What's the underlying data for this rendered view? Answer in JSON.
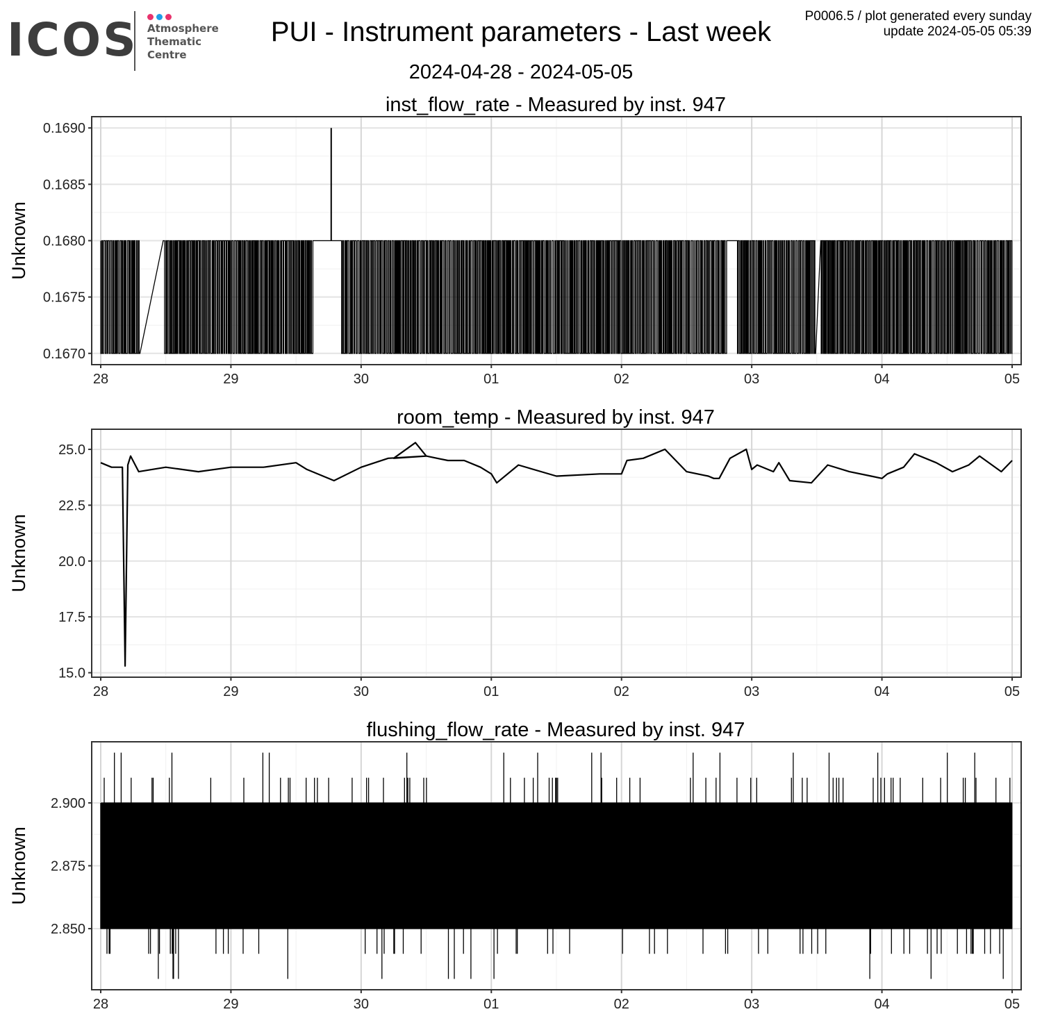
{
  "header": {
    "logo": {
      "wordmark": "ICOS",
      "subtitle_lines": [
        "Atmosphere",
        "Thematic",
        "Centre"
      ],
      "dot_colors": [
        "#e8336d",
        "#1f9fe8",
        "#e8336d"
      ]
    },
    "title": "PUI - Instrument parameters - Last week",
    "date_range": "2024-04-28 - 2024-05-05",
    "meta_line1": "P0006.5 / plot generated every sunday",
    "meta_line2": "update  2024-05-05 05:39"
  },
  "chart_data": [
    {
      "type": "line",
      "title": "inst_flow_rate - Measured by inst. 947",
      "ylabel": "Unknown",
      "xlabel": "",
      "xlim": [
        "2024-04-28T00:00",
        "2024-05-05T00:00"
      ],
      "xticks": [
        "28",
        "29",
        "30",
        "01",
        "02",
        "03",
        "04",
        "05"
      ],
      "ylim": [
        0.1669,
        0.1691
      ],
      "yticks": [
        "0.1670",
        "0.1675",
        "0.1680",
        "0.1685",
        "0.1690"
      ],
      "grid": true,
      "line_color": "#000000",
      "pattern": "rapid alternation between two levels",
      "levels": [
        0.167,
        0.168
      ],
      "steady_intervals": [
        {
          "from": "2024-04-28T07:12",
          "to": "2024-04-28T11:31",
          "value": 0.168
        },
        {
          "from": "2024-04-29T15:07",
          "to": "2024-04-29T20:24",
          "value": 0.168
        },
        {
          "from": "2024-05-02T19:26",
          "to": "2024-05-02T21:22",
          "value": 0.168
        },
        {
          "from": "2024-05-03T11:46",
          "to": "2024-05-03T12:43",
          "value": 0.168
        }
      ],
      "spikes": [
        {
          "x": "2024-04-29T18:29",
          "y": 0.169
        }
      ]
    },
    {
      "type": "line",
      "title": "room_temp - Measured by inst. 947",
      "ylabel": "Unknown",
      "xlabel": "",
      "xlim": [
        "2024-04-28T00:00",
        "2024-05-05T00:00"
      ],
      "xticks": [
        "28",
        "29",
        "30",
        "01",
        "02",
        "03",
        "04",
        "05"
      ],
      "ylim": [
        14.8,
        25.9
      ],
      "yticks": [
        "15.0",
        "17.5",
        "20.0",
        "22.5",
        "25.0"
      ],
      "grid": true,
      "line_color": "#000000",
      "series": [
        {
          "x": [
            "2024-04-28T00:00",
            "2024-04-28T02:00",
            "2024-04-28T04:00",
            "2024-04-28T04:30",
            "2024-04-28T05:00",
            "2024-04-28T05:30",
            "2024-04-28T07:00",
            "2024-04-28T12:00",
            "2024-04-28T18:00",
            "2024-04-29T00:00",
            "2024-04-29T06:00",
            "2024-04-29T12:00",
            "2024-04-29T14:00",
            "2024-04-29T19:00",
            "2024-04-30T00:00",
            "2024-04-30T05:00",
            "2024-04-30T12:00",
            "2024-04-30T06:00",
            "2024-04-30T10:00",
            "2024-04-30T12:00",
            "2024-04-30T16:00",
            "2024-04-30T19:00",
            "2024-04-30T22:00",
            "2024-05-01T00:00",
            "2024-05-01T01:00",
            "2024-05-01T05:00",
            "2024-05-01T12:00",
            "2024-05-01T20:00",
            "2024-05-01T23:00",
            "2024-05-02T00:00",
            "2024-05-02T01:00",
            "2024-05-02T04:00",
            "2024-05-02T08:00",
            "2024-05-02T12:00",
            "2024-05-02T16:00",
            "2024-05-02T17:00",
            "2024-05-02T18:00",
            "2024-05-02T20:00",
            "2024-05-02T23:00",
            "2024-05-03T00:00",
            "2024-05-03T01:00",
            "2024-05-03T04:00",
            "2024-05-03T05:00",
            "2024-05-03T06:00",
            "2024-05-03T07:00",
            "2024-05-03T11:00",
            "2024-05-03T14:00",
            "2024-05-03T18:00",
            "2024-05-03T22:00",
            "2024-05-04T00:00",
            "2024-05-04T01:00",
            "2024-05-04T04:00",
            "2024-05-04T06:00",
            "2024-05-04T10:00",
            "2024-05-04T13:00",
            "2024-05-04T16:00",
            "2024-05-04T18:00",
            "2024-05-04T22:00",
            "2024-05-05T00:00"
          ],
          "y": [
            24.4,
            24.2,
            24.2,
            15.3,
            24.3,
            24.7,
            24.0,
            24.2,
            24.0,
            24.2,
            24.2,
            24.4,
            24.1,
            23.6,
            24.2,
            24.6,
            24.7,
            24.6,
            25.3,
            24.7,
            24.5,
            24.5,
            24.2,
            23.9,
            23.5,
            24.3,
            23.8,
            23.9,
            23.9,
            23.9,
            24.5,
            24.6,
            25.0,
            24.0,
            23.8,
            23.7,
            23.7,
            24.6,
            25.0,
            24.1,
            24.3,
            24.0,
            24.4,
            24.0,
            23.6,
            23.5,
            24.3,
            24.0,
            23.8,
            23.7,
            23.9,
            24.2,
            24.8,
            24.4,
            24.0,
            24.3,
            24.7,
            24.0,
            24.5
          ]
        }
      ]
    },
    {
      "type": "line",
      "title": "flushing_flow_rate - Measured by inst. 947",
      "ylabel": "Unknown",
      "xlabel": "",
      "xlim": [
        "2024-04-28T00:00",
        "2024-05-05T00:00"
      ],
      "xticks": [
        "28",
        "29",
        "30",
        "01",
        "02",
        "03",
        "04",
        "05"
      ],
      "ylim": [
        2.8257,
        2.9243
      ],
      "yticks": [
        "2.850",
        "2.875",
        "2.900"
      ],
      "grid": true,
      "line_color": "#000000",
      "pattern": "rapid alternation between two levels with occasional outliers",
      "levels": [
        2.85,
        2.9
      ],
      "outlier_levels": [
        2.83,
        2.84,
        2.91,
        2.92
      ]
    }
  ]
}
